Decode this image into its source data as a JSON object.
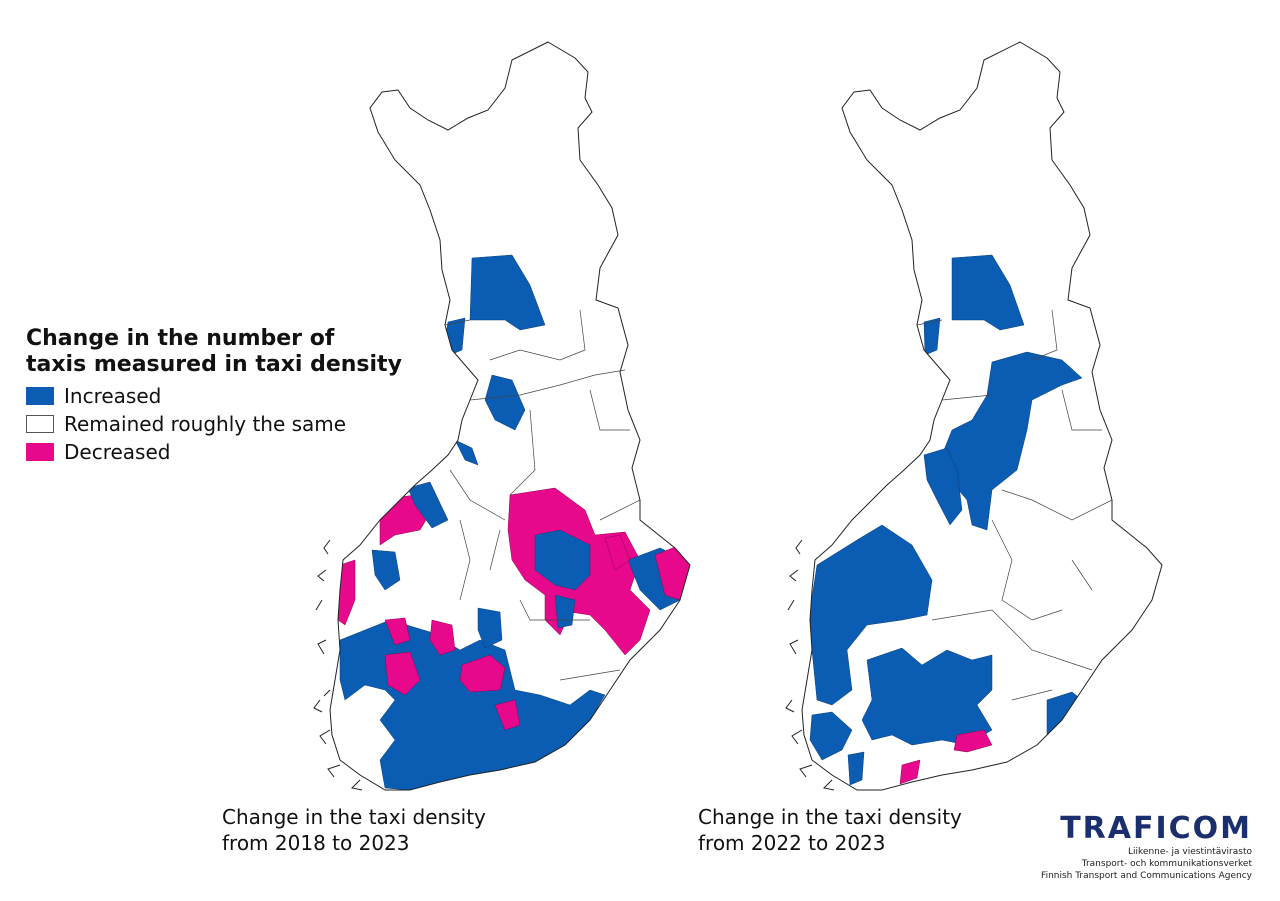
{
  "legend": {
    "title_line1": "Change in the number of",
    "title_line2": "taxis measured in taxi density",
    "items": [
      {
        "label": "Increased",
        "color": "#0b5cb3"
      },
      {
        "label": "Remained roughly the same",
        "color": "#ffffff"
      },
      {
        "label": "Decreased",
        "color": "#e8088c"
      }
    ]
  },
  "maps": [
    {
      "caption_line1": "Change in the taxi density",
      "caption_line2": "from 2018 to 2023"
    },
    {
      "caption_line1": "Change in the taxi density",
      "caption_line2": "from 2022 to 2023"
    }
  ],
  "logo": {
    "wordmark": "TRAFICOM",
    "line1": "Liikenne- ja viestintävirasto",
    "line2": "Transport- och kommunikationsverket",
    "line3": "Finnish Transport and Communications Agency"
  },
  "colors": {
    "increased": "#0b5cb3",
    "same": "#ffffff",
    "decreased": "#e8088c",
    "border": "#222222"
  }
}
